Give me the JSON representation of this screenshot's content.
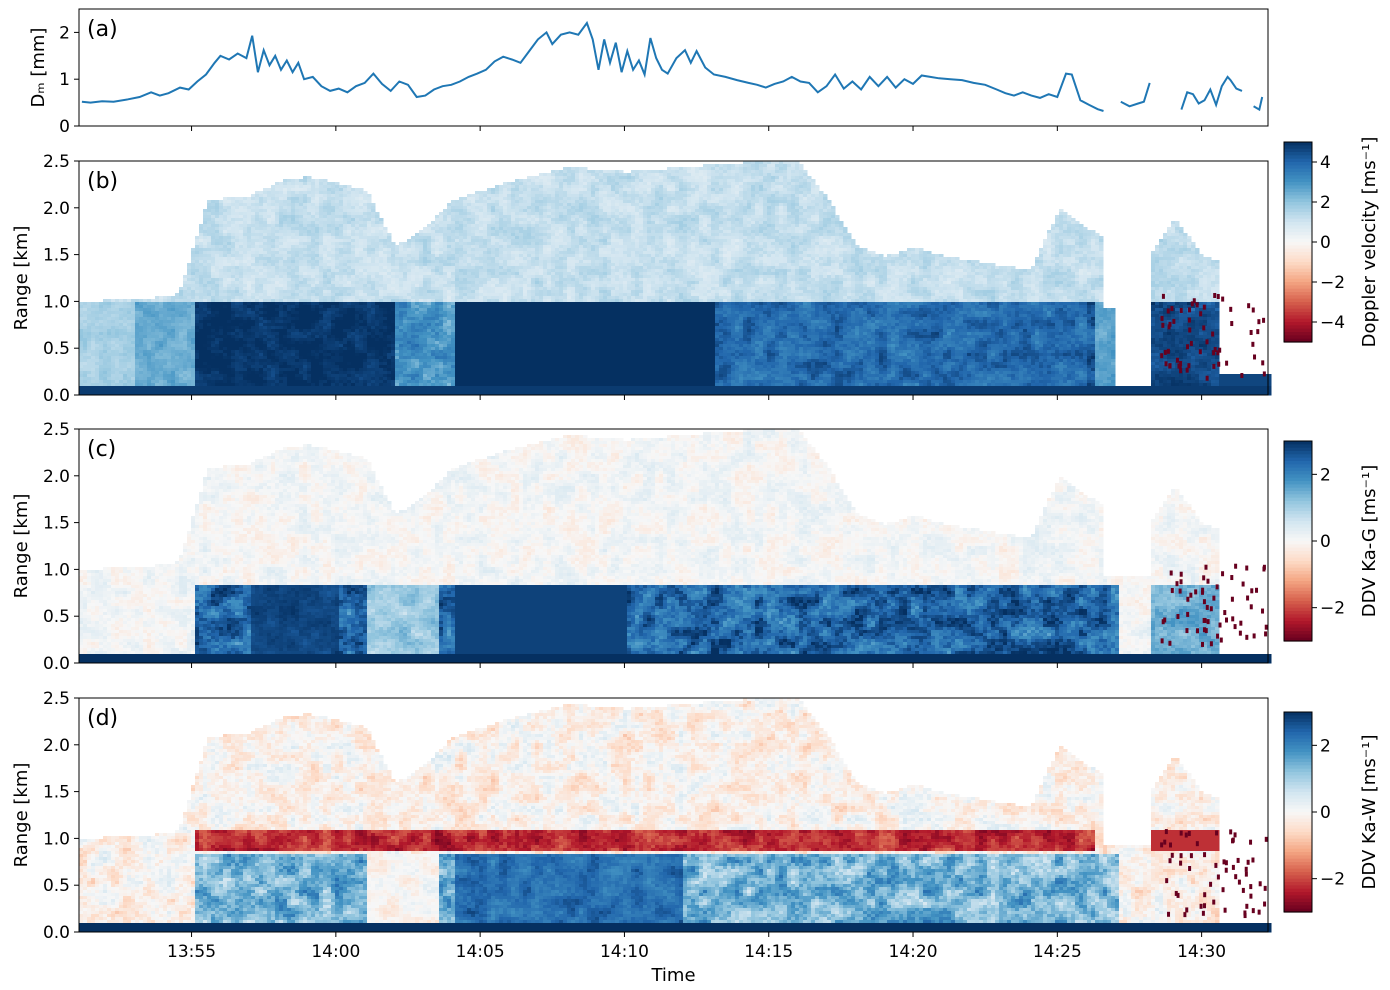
{
  "chart_data": [
    {
      "panel": "(a)",
      "type": "line",
      "ylabel": "D_m [mm]",
      "ylabel_display": "Dₘ [mm]",
      "ylim": [
        0,
        2.5
      ],
      "yticks": [
        "0",
        "1",
        "2"
      ],
      "ytick_values": [
        0,
        1,
        2
      ],
      "xlim_minutes": [
        51.1,
        92.3
      ],
      "series_segments": [
        [
          [
            51.2,
            0.52
          ],
          [
            51.5,
            0.5
          ],
          [
            51.9,
            0.53
          ],
          [
            52.3,
            0.52
          ],
          [
            52.8,
            0.57
          ],
          [
            53.2,
            0.62
          ],
          [
            53.6,
            0.72
          ],
          [
            53.9,
            0.65
          ],
          [
            54.2,
            0.7
          ],
          [
            54.6,
            0.82
          ],
          [
            54.9,
            0.78
          ],
          [
            55.2,
            0.95
          ],
          [
            55.5,
            1.1
          ],
          [
            55.8,
            1.35
          ],
          [
            56.0,
            1.5
          ],
          [
            56.3,
            1.42
          ],
          [
            56.6,
            1.55
          ],
          [
            56.9,
            1.45
          ],
          [
            57.1,
            1.93
          ],
          [
            57.3,
            1.15
          ],
          [
            57.5,
            1.62
          ],
          [
            57.7,
            1.3
          ],
          [
            57.9,
            1.5
          ],
          [
            58.1,
            1.2
          ],
          [
            58.3,
            1.4
          ],
          [
            58.5,
            1.15
          ],
          [
            58.7,
            1.35
          ],
          [
            58.9,
            1.0
          ],
          [
            59.2,
            1.05
          ],
          [
            59.5,
            0.85
          ],
          [
            59.8,
            0.75
          ],
          [
            60.1,
            0.8
          ],
          [
            60.4,
            0.72
          ],
          [
            60.7,
            0.85
          ],
          [
            61.0,
            0.92
          ],
          [
            61.3,
            1.12
          ],
          [
            61.6,
            0.9
          ],
          [
            61.9,
            0.75
          ],
          [
            62.2,
            0.95
          ],
          [
            62.5,
            0.88
          ],
          [
            62.8,
            0.62
          ],
          [
            63.1,
            0.65
          ],
          [
            63.4,
            0.78
          ],
          [
            63.7,
            0.85
          ],
          [
            64.0,
            0.88
          ],
          [
            64.3,
            0.95
          ],
          [
            64.6,
            1.05
          ],
          [
            64.9,
            1.12
          ],
          [
            65.2,
            1.2
          ],
          [
            65.5,
            1.38
          ],
          [
            65.8,
            1.48
          ],
          [
            66.1,
            1.42
          ],
          [
            66.4,
            1.35
          ],
          [
            66.7,
            1.6
          ],
          [
            67.0,
            1.85
          ],
          [
            67.3,
            2.0
          ],
          [
            67.5,
            1.75
          ],
          [
            67.8,
            1.95
          ],
          [
            68.1,
            2.0
          ],
          [
            68.4,
            1.95
          ],
          [
            68.7,
            2.2
          ],
          [
            68.9,
            1.85
          ],
          [
            69.1,
            1.2
          ],
          [
            69.3,
            1.85
          ],
          [
            69.5,
            1.35
          ],
          [
            69.7,
            1.78
          ],
          [
            69.9,
            1.15
          ],
          [
            70.1,
            1.6
          ],
          [
            70.3,
            1.2
          ],
          [
            70.5,
            1.4
          ],
          [
            70.7,
            1.1
          ],
          [
            70.9,
            1.88
          ],
          [
            71.1,
            1.45
          ],
          [
            71.3,
            1.2
          ],
          [
            71.5,
            1.12
          ],
          [
            71.8,
            1.45
          ],
          [
            72.1,
            1.62
          ],
          [
            72.3,
            1.35
          ],
          [
            72.5,
            1.6
          ],
          [
            72.8,
            1.25
          ],
          [
            73.1,
            1.1
          ],
          [
            73.5,
            1.05
          ],
          [
            73.9,
            0.98
          ],
          [
            74.3,
            0.92
          ],
          [
            74.6,
            0.88
          ],
          [
            74.9,
            0.82
          ],
          [
            75.2,
            0.9
          ],
          [
            75.5,
            0.95
          ],
          [
            75.8,
            1.05
          ],
          [
            76.1,
            0.95
          ],
          [
            76.4,
            0.92
          ],
          [
            76.7,
            0.72
          ],
          [
            77.0,
            0.85
          ],
          [
            77.3,
            1.1
          ],
          [
            77.6,
            0.8
          ],
          [
            77.9,
            0.95
          ],
          [
            78.2,
            0.78
          ],
          [
            78.5,
            1.05
          ],
          [
            78.8,
            0.85
          ],
          [
            79.1,
            1.05
          ],
          [
            79.4,
            0.82
          ],
          [
            79.7,
            1.0
          ],
          [
            80.0,
            0.9
          ],
          [
            80.3,
            1.08
          ],
          [
            80.6,
            1.05
          ],
          [
            80.9,
            1.02
          ],
          [
            81.3,
            1.0
          ],
          [
            81.7,
            0.98
          ],
          [
            82.1,
            0.92
          ],
          [
            82.5,
            0.88
          ],
          [
            82.9,
            0.78
          ],
          [
            83.2,
            0.7
          ],
          [
            83.5,
            0.65
          ],
          [
            83.8,
            0.72
          ],
          [
            84.1,
            0.65
          ],
          [
            84.4,
            0.6
          ],
          [
            84.7,
            0.68
          ],
          [
            85.0,
            0.62
          ],
          [
            85.3,
            1.12
          ],
          [
            85.5,
            1.1
          ],
          [
            85.8,
            0.55
          ],
          [
            86.1,
            0.45
          ],
          [
            86.4,
            0.36
          ],
          [
            86.6,
            0.32
          ]
        ],
        [
          [
            87.2,
            0.52
          ],
          [
            87.5,
            0.42
          ],
          [
            87.8,
            0.48
          ],
          [
            88.0,
            0.52
          ],
          [
            88.2,
            0.92
          ]
        ],
        [
          [
            89.3,
            0.35
          ],
          [
            89.5,
            0.72
          ],
          [
            89.7,
            0.68
          ],
          [
            89.9,
            0.48
          ],
          [
            90.1,
            0.55
          ],
          [
            90.3,
            0.78
          ],
          [
            90.5,
            0.45
          ],
          [
            90.7,
            0.85
          ],
          [
            90.9,
            1.05
          ],
          [
            91.0,
            0.98
          ],
          [
            91.2,
            0.8
          ],
          [
            91.4,
            0.75
          ]
        ],
        [
          [
            91.8,
            0.42
          ],
          [
            92.0,
            0.35
          ],
          [
            92.1,
            0.62
          ]
        ]
      ],
      "line_color": "#1f77b4"
    },
    {
      "panel": "(b)",
      "type": "heatmap",
      "ylabel": "Range [km]",
      "ylim_km": [
        0,
        2.5
      ],
      "yticks": [
        "0.0",
        "0.5",
        "1.0",
        "1.5",
        "2.0",
        "2.5"
      ],
      "colorbar_label": "Doppler velocity [ms⁻¹]",
      "colorbar_ticks": [
        "4",
        "2",
        "0",
        "−2",
        "−4"
      ],
      "colorbar_tick_values": [
        4,
        2,
        0,
        -2,
        -4
      ],
      "clim": [
        -5,
        5
      ],
      "colormap": "RdBu"
    },
    {
      "panel": "(c)",
      "type": "heatmap",
      "ylabel": "Range [km]",
      "ylim_km": [
        0,
        2.5
      ],
      "yticks": [
        "0.0",
        "0.5",
        "1.0",
        "1.5",
        "2.0",
        "2.5"
      ],
      "colorbar_label": "DDV Ka-G [ms⁻¹]",
      "colorbar_ticks": [
        "2",
        "0",
        "−2"
      ],
      "colorbar_tick_values": [
        2,
        0,
        -2
      ],
      "clim": [
        -3,
        3
      ],
      "colormap": "RdBu"
    },
    {
      "panel": "(d)",
      "type": "heatmap",
      "ylabel": "Range [km]",
      "ylim_km": [
        0,
        2.5
      ],
      "yticks": [
        "0.0",
        "0.5",
        "1.0",
        "1.5",
        "2.0",
        "2.5"
      ],
      "colorbar_label": "DDV Ka-W [ms⁻¹]",
      "colorbar_ticks": [
        "2",
        "0",
        "−2"
      ],
      "colorbar_tick_values": [
        2,
        0,
        -2
      ],
      "clim": [
        -3,
        3
      ],
      "colormap": "RdBu"
    }
  ],
  "x_axis": {
    "label": "Time",
    "ticks": [
      "13:55",
      "14:00",
      "14:05",
      "14:10",
      "14:15",
      "14:20",
      "14:25",
      "14:30"
    ],
    "tick_minutes": [
      55,
      60,
      65,
      70,
      75,
      80,
      85,
      90
    ],
    "range_minutes": [
      51.1,
      92.3
    ]
  },
  "colors": {
    "line": "#1f77b4",
    "colormap_stops": [
      "#67001f",
      "#b2182b",
      "#d6604d",
      "#f4a582",
      "#fddbc7",
      "#f7f7f7",
      "#d1e5f0",
      "#92c5de",
      "#4393c3",
      "#2166ac",
      "#053061"
    ]
  }
}
